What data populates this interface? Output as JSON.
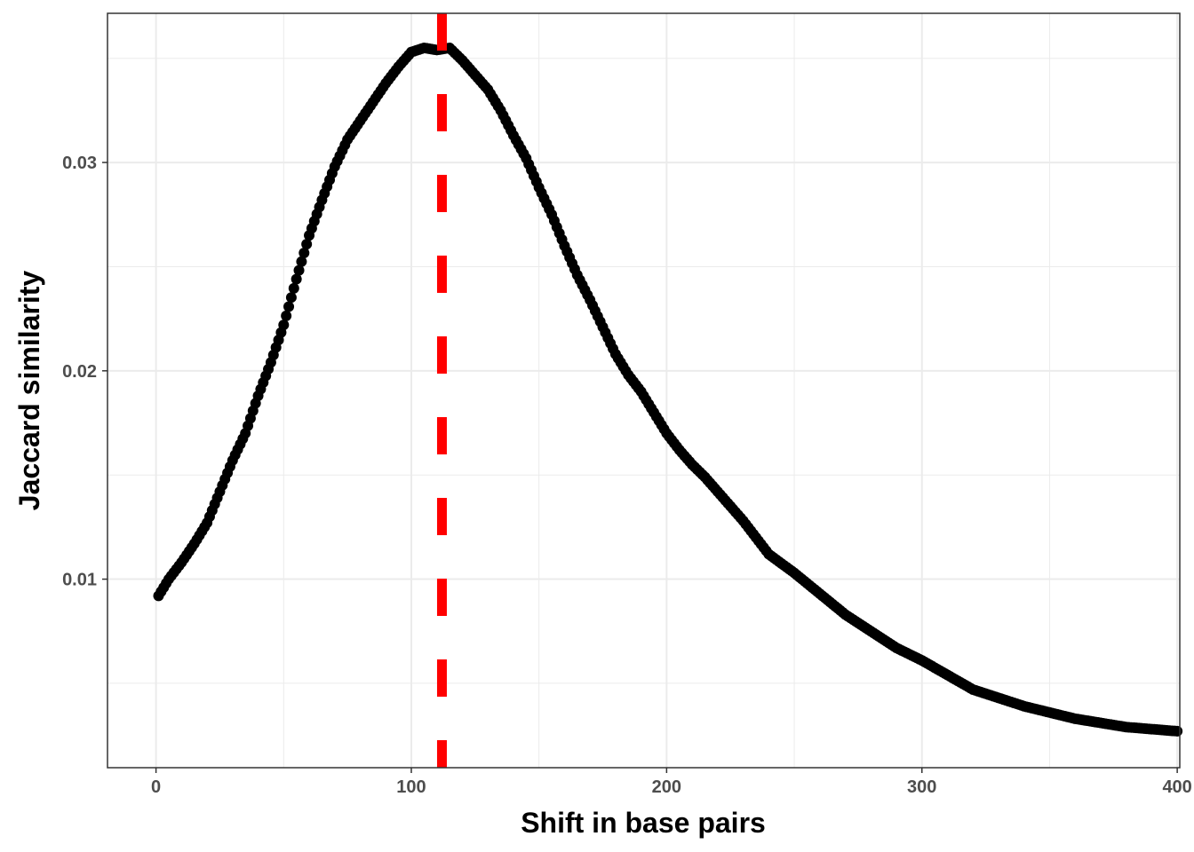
{
  "chart_data": {
    "type": "scatter",
    "title": "",
    "xlabel": "Shift in base pairs",
    "ylabel": "Jaccard similarity",
    "xlim": [
      -19,
      401
    ],
    "ylim": [
      0.00095,
      0.03716
    ],
    "x_ticks": [
      0,
      100,
      200,
      300,
      400
    ],
    "x_tick_labels": [
      "0",
      "100",
      "200",
      "300",
      "400"
    ],
    "y_ticks": [
      0.01,
      0.02,
      0.03
    ],
    "y_tick_labels": [
      "0.01",
      "0.02",
      "0.03"
    ],
    "grid": true,
    "legend": "none",
    "point_color": "#000000",
    "reference_line": {
      "orientation": "vertical",
      "x": 112,
      "color": "#ff0000",
      "style": "dashed"
    },
    "series": [
      {
        "x": [
          1,
          5,
          10,
          15,
          20,
          25,
          30,
          35,
          40,
          45,
          50,
          55,
          60,
          65,
          70,
          75,
          80,
          85,
          90,
          95,
          100,
          105,
          110,
          115,
          120,
          125,
          130,
          135,
          140,
          145,
          150,
          155,
          160,
          165,
          170,
          175,
          180,
          185,
          190,
          195,
          200,
          205,
          210,
          215,
          220,
          230,
          240,
          250,
          260,
          270,
          280,
          290,
          300,
          310,
          320,
          330,
          340,
          350,
          360,
          370,
          380,
          390,
          400
        ],
        "y": [
          0.0092,
          0.01,
          0.0108,
          0.0117,
          0.0127,
          0.0142,
          0.0157,
          0.017,
          0.0188,
          0.0204,
          0.0222,
          0.0244,
          0.0265,
          0.0282,
          0.0298,
          0.0311,
          0.032,
          0.0329,
          0.0338,
          0.0346,
          0.0353,
          0.0355,
          0.0354,
          0.0355,
          0.0349,
          0.0342,
          0.0335,
          0.0325,
          0.0313,
          0.0302,
          0.0288,
          0.0275,
          0.026,
          0.0246,
          0.0234,
          0.0221,
          0.0208,
          0.0198,
          0.019,
          0.018,
          0.017,
          0.0162,
          0.0155,
          0.0149,
          0.0142,
          0.0128,
          0.0112,
          0.0103,
          0.0093,
          0.0083,
          0.0075,
          0.0067,
          0.0061,
          0.0054,
          0.0047,
          0.0043,
          0.0039,
          0.0036,
          0.0033,
          0.0031,
          0.0029,
          0.0028,
          0.0027
        ]
      }
    ]
  }
}
